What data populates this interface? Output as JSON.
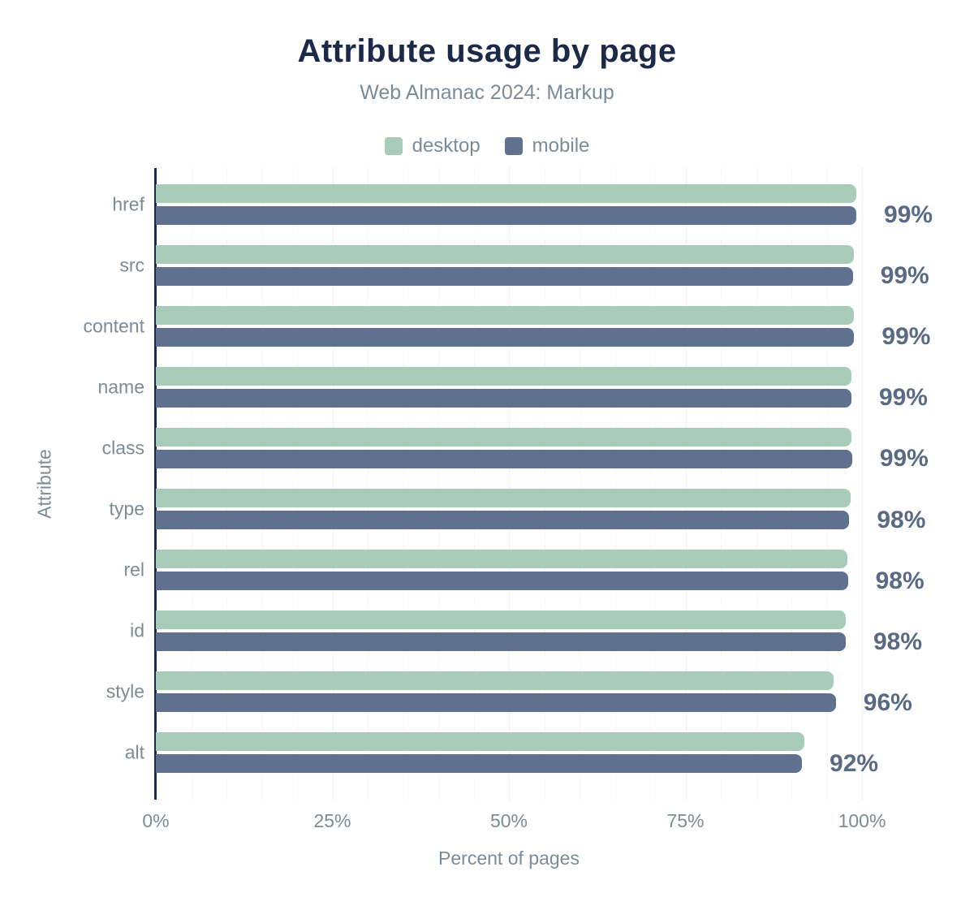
{
  "chart_data": {
    "type": "bar",
    "orientation": "horizontal",
    "title": "Attribute usage by page",
    "subtitle": "Web Almanac 2024: Markup",
    "xlabel": "Percent of pages",
    "ylabel": "Attribute",
    "xlim": [
      0,
      100
    ],
    "x_ticks": [
      0,
      25,
      50,
      75,
      100
    ],
    "x_tick_labels": [
      "0%",
      "25%",
      "50%",
      "75%",
      "100%"
    ],
    "grid": "vertical dotted minor lines every 5%, slightly darker at 25% multiples",
    "legend_position": "top",
    "categories": [
      "href",
      "src",
      "content",
      "name",
      "class",
      "type",
      "rel",
      "id",
      "style",
      "alt"
    ],
    "series": [
      {
        "name": "desktop",
        "color": "#a9cbb9",
        "values": [
          99.2,
          98.8,
          98.9,
          98.5,
          98.5,
          98.4,
          97.9,
          97.7,
          96.0,
          91.8
        ]
      },
      {
        "name": "mobile",
        "color": "#5f718e",
        "values": [
          99.2,
          98.7,
          98.9,
          98.5,
          98.6,
          98.2,
          98.0,
          97.7,
          96.3,
          91.5
        ]
      }
    ],
    "value_labels": [
      "99%",
      "99%",
      "99%",
      "99%",
      "99%",
      "98%",
      "98%",
      "98%",
      "96%",
      "92%"
    ]
  },
  "colors": {
    "background": "#ffffff",
    "title": "#1d2a47",
    "muted_text": "#7d8b97",
    "value_label": "#596a85",
    "axis_line": "#1d2a47",
    "grid_minor": "#ededf1",
    "grid_major": "#dfe3e8"
  }
}
